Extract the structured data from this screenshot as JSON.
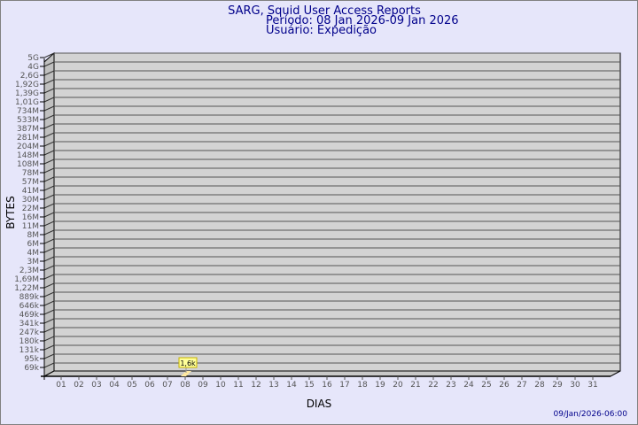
{
  "header": {
    "title": "SARG, Squid User Access Reports",
    "period": "Período: 08 Jan 2026-09 Jan 2026",
    "user": "Usuário: Expedição"
  },
  "footer": {
    "timestamp": "09/Jan/2026-06:00"
  },
  "colors": {
    "background": "#e6e6fa",
    "plot_wall": "#d3d3d3",
    "title": "#00008b",
    "bar": "#ffe9a0",
    "label_box": "#ffff99"
  },
  "chart_data": {
    "type": "bar",
    "xlabel": "DIAS",
    "ylabel": "BYTES",
    "y_scale": "log",
    "grid": true,
    "yticks": [
      "5G",
      "4G",
      "2,6G",
      "1,92G",
      "1,39G",
      "1,01G",
      "734M",
      "533M",
      "387M",
      "281M",
      "204M",
      "148M",
      "108M",
      "78M",
      "57M",
      "41M",
      "30M",
      "22M",
      "16M",
      "11M",
      "8M",
      "6M",
      "4M",
      "3M",
      "2,3M",
      "1,69M",
      "1,22M",
      "889k",
      "646k",
      "469k",
      "341k",
      "247k",
      "180k",
      "131k",
      "95k",
      "69k"
    ],
    "categories": [
      "01",
      "02",
      "03",
      "04",
      "05",
      "06",
      "07",
      "08",
      "09",
      "10",
      "11",
      "12",
      "13",
      "14",
      "15",
      "16",
      "17",
      "18",
      "19",
      "20",
      "21",
      "22",
      "23",
      "24",
      "25",
      "26",
      "27",
      "28",
      "29",
      "30",
      "31"
    ],
    "values": [
      null,
      null,
      null,
      null,
      null,
      null,
      null,
      1600,
      null,
      null,
      null,
      null,
      null,
      null,
      null,
      null,
      null,
      null,
      null,
      null,
      null,
      null,
      null,
      null,
      null,
      null,
      null,
      null,
      null,
      null,
      null
    ],
    "data_labels": {
      "08": "1,6k"
    }
  }
}
